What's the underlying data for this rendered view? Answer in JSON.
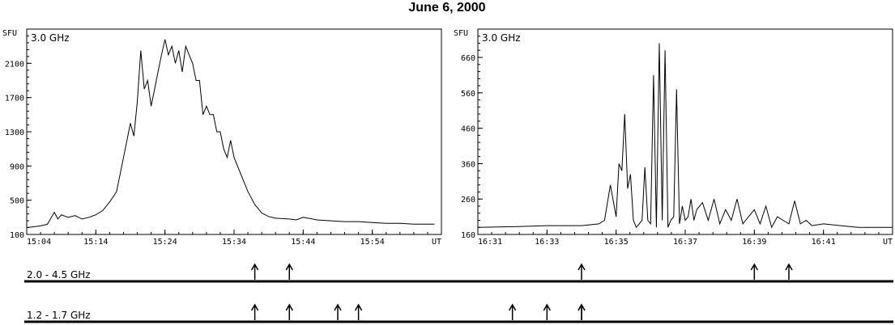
{
  "figure_title": "June 6, 2000",
  "chart_data": [
    {
      "type": "line",
      "panel_label": "3.0 GHz",
      "ylabel": "SFU",
      "xlabel": "UT",
      "ylim": [
        100,
        2500
      ],
      "xlim": [
        "15:04",
        "16:04"
      ],
      "yticks": [
        100,
        500,
        900,
        1300,
        1700,
        2100
      ],
      "ytick_labels": [
        "100",
        "500",
        "900",
        "1300",
        "1700",
        "2100"
      ],
      "xticks": [
        "15:04",
        "15:14",
        "15:24",
        "15:34",
        "15:44",
        "15:54",
        "16:04"
      ],
      "xtick_labels": [
        "15:04",
        "15:14",
        "15:24",
        "15:34",
        "15:44",
        "15:54",
        "UT"
      ],
      "series": [
        {
          "x": [
            "15:04",
            "15:05",
            "15:06",
            "15:07",
            "15:08",
            "15:08:30",
            "15:09",
            "15:10",
            "15:11",
            "15:12",
            "15:13",
            "15:14",
            "15:15",
            "15:16",
            "15:17",
            "15:18",
            "15:19",
            "15:19:30",
            "15:20",
            "15:20:30",
            "15:21",
            "15:21:30",
            "15:22",
            "15:22:30",
            "15:23",
            "15:23:30",
            "15:24",
            "15:24:30",
            "15:25",
            "15:25:30",
            "15:26",
            "15:26:30",
            "15:27",
            "15:27:30",
            "15:28",
            "15:28:30",
            "15:29",
            "15:29:30",
            "15:30",
            "15:30:30",
            "15:31",
            "15:31:30",
            "15:32",
            "15:32:30",
            "15:33",
            "15:33:30",
            "15:34",
            "15:35",
            "15:36",
            "15:37",
            "15:38",
            "15:39",
            "15:40",
            "15:42",
            "15:43",
            "15:44",
            "15:46",
            "15:48",
            "15:50",
            "15:52",
            "15:54",
            "15:56",
            "15:58",
            "16:00",
            "16:02",
            "16:03"
          ],
          "y": [
            180,
            190,
            200,
            220,
            360,
            280,
            330,
            300,
            320,
            280,
            300,
            330,
            380,
            480,
            600,
            1000,
            1400,
            1250,
            1650,
            2250,
            1800,
            1900,
            1600,
            1800,
            2000,
            2200,
            2380,
            2200,
            2300,
            2100,
            2250,
            2000,
            2300,
            2200,
            2100,
            1900,
            1900,
            1500,
            1600,
            1500,
            1500,
            1300,
            1300,
            1100,
            1000,
            1200,
            1000,
            800,
            600,
            450,
            350,
            310,
            290,
            280,
            270,
            300,
            270,
            260,
            250,
            250,
            240,
            230,
            230,
            220,
            220,
            220
          ]
        }
      ]
    },
    {
      "type": "line",
      "panel_label": "3.0 GHz",
      "ylabel": "SFU",
      "xlabel": "UT",
      "ylim": [
        160,
        740
      ],
      "xlim": [
        "16:31",
        "16:43"
      ],
      "yticks": [
        160,
        260,
        360,
        460,
        560,
        660
      ],
      "ytick_labels": [
        "160",
        "260",
        "360",
        "460",
        "560",
        "660"
      ],
      "xticks": [
        "16:31",
        "16:33",
        "16:35",
        "16:37",
        "16:39",
        "16:41",
        "16:43"
      ],
      "xtick_labels": [
        "16:31",
        "16:33",
        "16:35",
        "16:37",
        "16:39",
        "16:41",
        "UT"
      ],
      "series": [
        {
          "x": [
            "16:31:00",
            "16:32:00",
            "16:33:00",
            "16:34:00",
            "16:34:30",
            "16:34:40",
            "16:34:50",
            "16:35:00",
            "16:35:05",
            "16:35:10",
            "16:35:15",
            "16:35:20",
            "16:35:25",
            "16:35:30",
            "16:35:35",
            "16:35:40",
            "16:35:45",
            "16:35:50",
            "16:35:55",
            "16:36:00",
            "16:36:05",
            "16:36:10",
            "16:36:15",
            "16:36:20",
            "16:36:25",
            "16:36:30",
            "16:36:35",
            "16:36:40",
            "16:36:45",
            "16:36:50",
            "16:36:55",
            "16:37:00",
            "16:37:05",
            "16:37:10",
            "16:37:15",
            "16:37:20",
            "16:37:30",
            "16:37:40",
            "16:37:50",
            "16:38:00",
            "16:38:10",
            "16:38:20",
            "16:38:30",
            "16:38:40",
            "16:38:50",
            "16:39:00",
            "16:39:10",
            "16:39:20",
            "16:39:30",
            "16:39:40",
            "16:39:50",
            "16:40:00",
            "16:40:10",
            "16:40:20",
            "16:40:30",
            "16:40:40",
            "16:41:00",
            "16:41:30",
            "16:42:00",
            "16:42:30",
            "16:43:00"
          ],
          "y": [
            180,
            182,
            185,
            185,
            190,
            200,
            300,
            210,
            360,
            340,
            500,
            290,
            330,
            200,
            180,
            190,
            200,
            350,
            200,
            190,
            610,
            180,
            700,
            200,
            680,
            180,
            200,
            210,
            570,
            190,
            240,
            200,
            210,
            260,
            200,
            230,
            250,
            200,
            260,
            190,
            230,
            200,
            260,
            190,
            210,
            230,
            190,
            240,
            180,
            210,
            200,
            190,
            255,
            190,
            200,
            185,
            190,
            185,
            180,
            180,
            180
          ]
        }
      ]
    }
  ],
  "band_rows": [
    {
      "label": "2.0 - 4.5 GHz",
      "arrow_times": [
        "15:37",
        "15:42",
        "16:34",
        "16:39",
        "16:40"
      ]
    },
    {
      "label": "1.2 - 1.7 GHz",
      "arrow_times": [
        "15:37",
        "15:42",
        "15:49",
        "15:52",
        "16:32",
        "16:33",
        "16:34",
        "16:34"
      ]
    }
  ]
}
